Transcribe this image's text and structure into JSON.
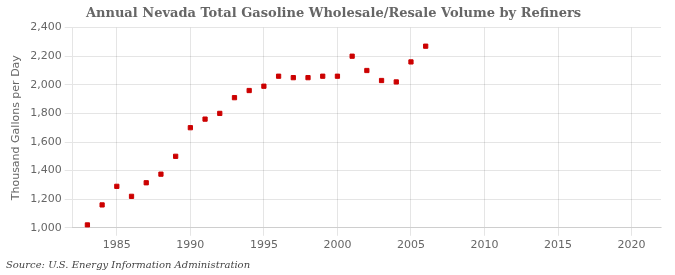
{
  "chart_data": {
    "type": "scatter",
    "title": "Annual Nevada Total Gasoline Wholesale/Resale Volume by Refiners",
    "ylabel": "Thousand Gallons per Day",
    "annotation": "Source: U.S. Energy Information Administration",
    "x": [
      1983,
      1984,
      1985,
      1986,
      1987,
      1988,
      1989,
      1990,
      1991,
      1992,
      1993,
      1994,
      1995,
      1996,
      1997,
      1998,
      1999,
      2000,
      2001,
      2002,
      2003,
      2004,
      2005,
      2006
    ],
    "values": [
      1020,
      1160,
      1290,
      1220,
      1315,
      1375,
      1500,
      1700,
      1760,
      1800,
      1910,
      1960,
      1990,
      2060,
      2050,
      2050,
      2060,
      2060,
      2200,
      2100,
      2030,
      2020,
      2160,
      2270
    ],
    "color": "#cc0000",
    "marker": "square",
    "xlim": [
      1982,
      2022
    ],
    "xticks": [
      1985,
      1990,
      1995,
      2000,
      2005,
      2010,
      2015,
      2020
    ],
    "ylim": [
      1000,
      2400
    ],
    "yticks": [
      {
        "value": 1000,
        "label": "1,000"
      },
      {
        "value": 1200,
        "label": "1,200"
      },
      {
        "value": 1400,
        "label": "1,400"
      },
      {
        "value": 1600,
        "label": "1,600"
      },
      {
        "value": 1800,
        "label": "1,800"
      },
      {
        "value": 2000,
        "label": "2,000"
      },
      {
        "value": 2200,
        "label": "2,200"
      },
      {
        "value": 2400,
        "label": "2,400"
      }
    ],
    "grid": true,
    "legend": false
  }
}
